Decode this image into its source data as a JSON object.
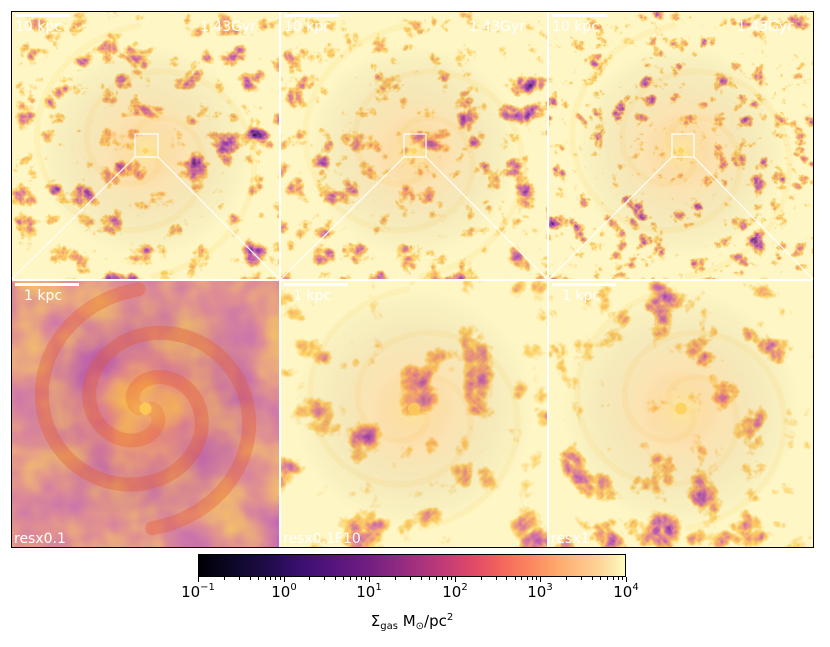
{
  "panels_top": [
    {
      "scale_label": "10 kpc",
      "time_label": "1.43Gyr"
    },
    {
      "scale_label": "10 kpc",
      "time_label": "1.43Gyr"
    },
    {
      "scale_label": "10 kpc",
      "time_label": "1.43Gyr"
    }
  ],
  "panels_bottom": [
    {
      "scale_label": "1 kpc",
      "run_label": "resx0.1"
    },
    {
      "scale_label": "1 kpc",
      "run_label": "resx0.1F10"
    },
    {
      "scale_label": "1 kpc",
      "run_label": "resx1"
    }
  ],
  "colorbar": {
    "colormap": "inferno",
    "scale": "log",
    "range": [
      0.1,
      10000
    ],
    "tick_bases": [
      "10",
      "10",
      "10",
      "10",
      "10",
      "10"
    ],
    "tick_exponents": [
      "−1",
      "0",
      "1",
      "2",
      "3",
      "4"
    ],
    "title_symbol": "Σ",
    "title_subscript": "gas",
    "title_units_prefix": " M",
    "title_units_odot": "⊙",
    "title_units_mid": "/pc",
    "title_units_sup": "2"
  },
  "colors": {
    "dark": "#0e0626",
    "mid": "#5a1a7a",
    "filament": "#e8582a",
    "bright": "#fcd055"
  }
}
